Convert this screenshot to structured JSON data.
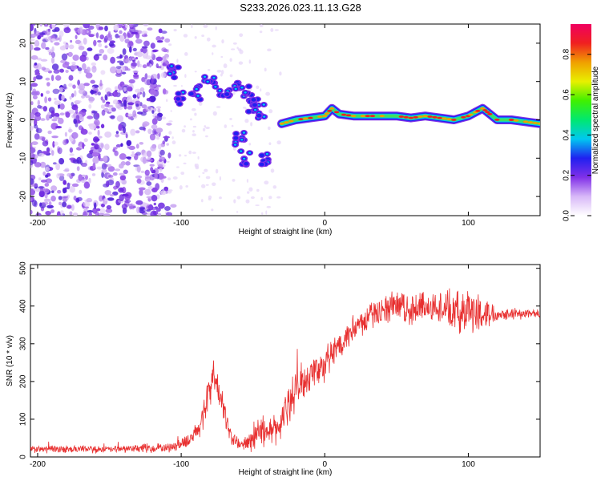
{
  "title": "S233.2026.023.11.13.G28",
  "chart_data": [
    {
      "type": "heatmap",
      "name": "spectrogram",
      "xlabel": "Height of straight line (km)",
      "ylabel": "Frequency (Hz)",
      "xlim": [
        -205,
        150
      ],
      "ylim": [
        -25,
        25
      ],
      "xticks": [
        -200,
        -100,
        0,
        100
      ],
      "yticks": [
        -20,
        -10,
        0,
        10,
        20
      ],
      "colorbar": {
        "label": "Normalized spectral amplitude",
        "range": [
          0,
          0.95
        ],
        "ticks": [
          "0.0",
          "0.2",
          "0.4",
          "0.6",
          "0.8"
        ],
        "tick_values": [
          0,
          0.2,
          0.4,
          0.6,
          0.8
        ],
        "colors": [
          "#ffffff",
          "#d8b8f8",
          "#8030e8",
          "#2020f0",
          "#00c8f0",
          "#00e870",
          "#40f000",
          "#e8f000",
          "#f0a000",
          "#f02020",
          "#f00060"
        ]
      },
      "ridge": {
        "x": [
          -30,
          -20,
          -10,
          0,
          5,
          10,
          20,
          30,
          40,
          50,
          60,
          70,
          80,
          90,
          100,
          105,
          110,
          115,
          120,
          130,
          140,
          150
        ],
        "freq": [
          -1,
          0,
          0.5,
          1,
          3,
          1.5,
          1,
          1,
          1,
          1,
          0.5,
          1,
          0.5,
          0,
          1,
          2,
          3,
          1.5,
          0,
          0,
          -0.5,
          -1
        ]
      },
      "clusters": [
        {
          "x": -105,
          "freq": 13
        },
        {
          "x": -100,
          "freq": 6
        },
        {
          "x": -90,
          "freq": 7
        },
        {
          "x": -80,
          "freq": 10
        },
        {
          "x": -70,
          "freq": 6
        },
        {
          "x": -60,
          "freq": 10
        },
        {
          "x": -55,
          "freq": 7
        },
        {
          "x": -50,
          "freq": 4
        },
        {
          "x": -45,
          "freq": 2
        },
        {
          "x": -60,
          "freq": -5
        },
        {
          "x": -55,
          "freq": -10
        },
        {
          "x": -40,
          "freq": -10
        }
      ]
    },
    {
      "type": "line",
      "name": "snr",
      "xlabel": "Height of straight line (km)",
      "ylabel": "SNR (10 * v/v)",
      "xlim": [
        -205,
        150
      ],
      "ylim": [
        0,
        510
      ],
      "xticks": [
        -200,
        -100,
        0,
        100
      ],
      "yticks": [
        0,
        100,
        200,
        300,
        400,
        500
      ],
      "color": "#e83030",
      "envelope": {
        "x": [
          -205,
          -150,
          -110,
          -95,
          -88,
          -82,
          -78,
          -72,
          -65,
          -58,
          -52,
          -45,
          -40,
          -32,
          -25,
          -20,
          -10,
          0,
          10,
          20,
          30,
          40,
          50,
          60,
          70,
          80,
          90,
          100,
          110,
          120,
          130,
          140,
          150
        ],
        "y": [
          20,
          20,
          25,
          40,
          70,
          150,
          220,
          150,
          50,
          30,
          40,
          80,
          60,
          80,
          140,
          180,
          220,
          240,
          300,
          340,
          370,
          390,
          400,
          390,
          400,
          400,
          380,
          390,
          380,
          380,
          380,
          380,
          380
        ],
        "noise": [
          8,
          8,
          10,
          15,
          25,
          40,
          40,
          30,
          20,
          15,
          25,
          40,
          30,
          40,
          45,
          45,
          40,
          40,
          30,
          30,
          30,
          30,
          35,
          35,
          35,
          40,
          45,
          50,
          40,
          15,
          12,
          12,
          12
        ]
      }
    }
  ]
}
